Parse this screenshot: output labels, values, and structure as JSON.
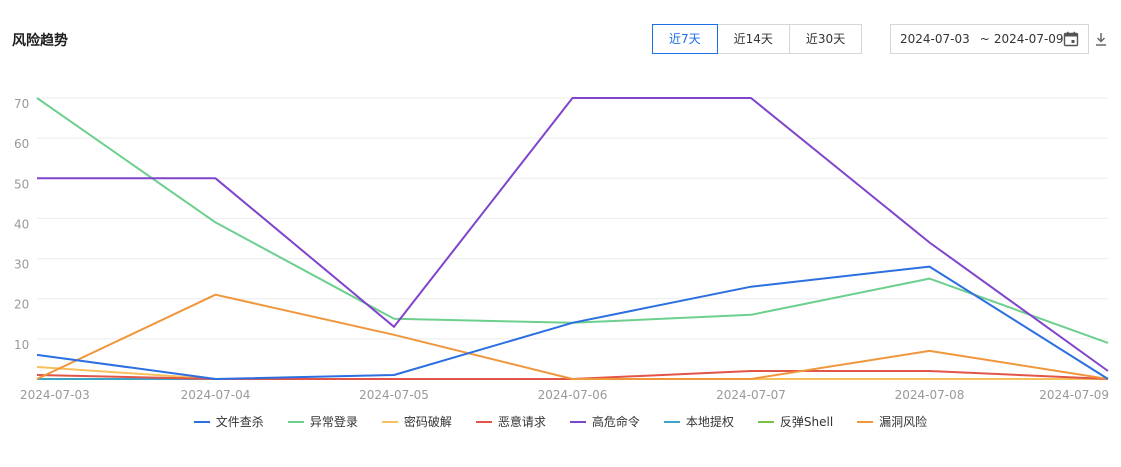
{
  "header": {
    "title": "风险趋势",
    "ranges": [
      {
        "label": "近7天",
        "active": true
      },
      {
        "label": "近14天",
        "active": false
      },
      {
        "label": "近30天",
        "active": false
      }
    ],
    "date_start": "2024-07-03",
    "date_sep": "~",
    "date_end": "2024-07-09"
  },
  "chart_data": {
    "type": "line",
    "x": [
      "2024-07-03",
      "2024-07-04",
      "2024-07-05",
      "2024-07-06",
      "2024-07-07",
      "2024-07-08",
      "2024-07-09"
    ],
    "ylim": [
      0,
      70
    ],
    "yticks": [
      0,
      10,
      20,
      30,
      40,
      50,
      60,
      70
    ],
    "grid": true,
    "legend_position": "bottom",
    "series": [
      {
        "name": "文件查杀",
        "color": "#2c6fe0",
        "values": [
          6,
          0,
          1,
          14,
          23,
          28,
          0
        ]
      },
      {
        "name": "异常登录",
        "color": "#6dcf8e",
        "values": [
          70,
          39,
          15,
          14,
          16,
          25,
          9
        ]
      },
      {
        "name": "密码破解",
        "color": "#f5c05d",
        "values": [
          3,
          0,
          0,
          0,
          0,
          0,
          0
        ]
      },
      {
        "name": "恶意请求",
        "color": "#e05547",
        "values": [
          1,
          0,
          0,
          0,
          2,
          2,
          0
        ]
      },
      {
        "name": "高危命令",
        "color": "#8044cc",
        "values": [
          50,
          50,
          13,
          70,
          70,
          34,
          2
        ]
      },
      {
        "name": "本地提权",
        "color": "#3fa4c4",
        "values": [
          0,
          0,
          0,
          0,
          0,
          0,
          0
        ]
      },
      {
        "name": "反弹Shell",
        "color": "#7ac04a",
        "values": [
          0,
          0,
          0,
          0,
          0,
          0,
          0
        ]
      },
      {
        "name": "漏洞风险",
        "color": "#f0963c",
        "values": [
          0,
          21,
          11,
          0,
          0,
          7,
          0
        ]
      }
    ]
  }
}
